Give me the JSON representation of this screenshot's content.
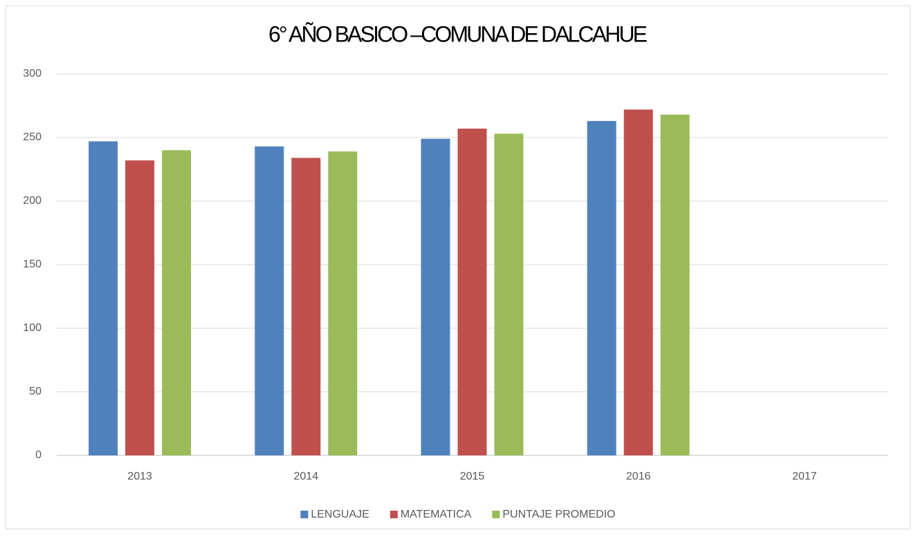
{
  "chart_data": {
    "type": "bar",
    "title": "6° AÑO BASICO –COMUNA DE DALCAHUE",
    "categories": [
      "2013",
      "2014",
      "2015",
      "2016",
      "2017"
    ],
    "series": [
      {
        "name": "LENGUAJE",
        "color": "#4f81bd",
        "values": [
          247,
          243,
          249,
          263,
          null
        ]
      },
      {
        "name": "MATEMATICA",
        "color": "#c0504d",
        "values": [
          232,
          234,
          257,
          272,
          null
        ]
      },
      {
        "name": "PUNTAJE PROMEDIO",
        "color": "#9bbb59",
        "values": [
          240,
          239,
          253,
          268,
          null
        ]
      }
    ],
    "ylim": [
      0,
      300
    ],
    "yticks": [
      0,
      50,
      100,
      150,
      200,
      250,
      300
    ],
    "grid": true,
    "legend": "bottom"
  }
}
